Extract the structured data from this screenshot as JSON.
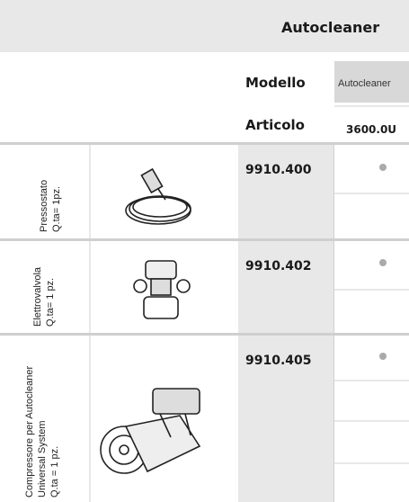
{
  "header": {
    "title": "Autocleaner",
    "model_label": "Modello",
    "model_value": "Autocleaner",
    "article_label": "Articolo",
    "article_value": "3600.0U"
  },
  "rows": [
    {
      "label_lines": [
        "Pressostato",
        "Q.ta= 1pz."
      ],
      "code": "9910.400"
    },
    {
      "label_lines": [
        "Elettrovalvola",
        "Q.ta= 1 pz."
      ],
      "code": "9910.402"
    },
    {
      "label_lines": [
        "Compressore per Autocleaner",
        "Universal System",
        "Q.ta = 1 pz."
      ],
      "code": "9910.405"
    }
  ]
}
